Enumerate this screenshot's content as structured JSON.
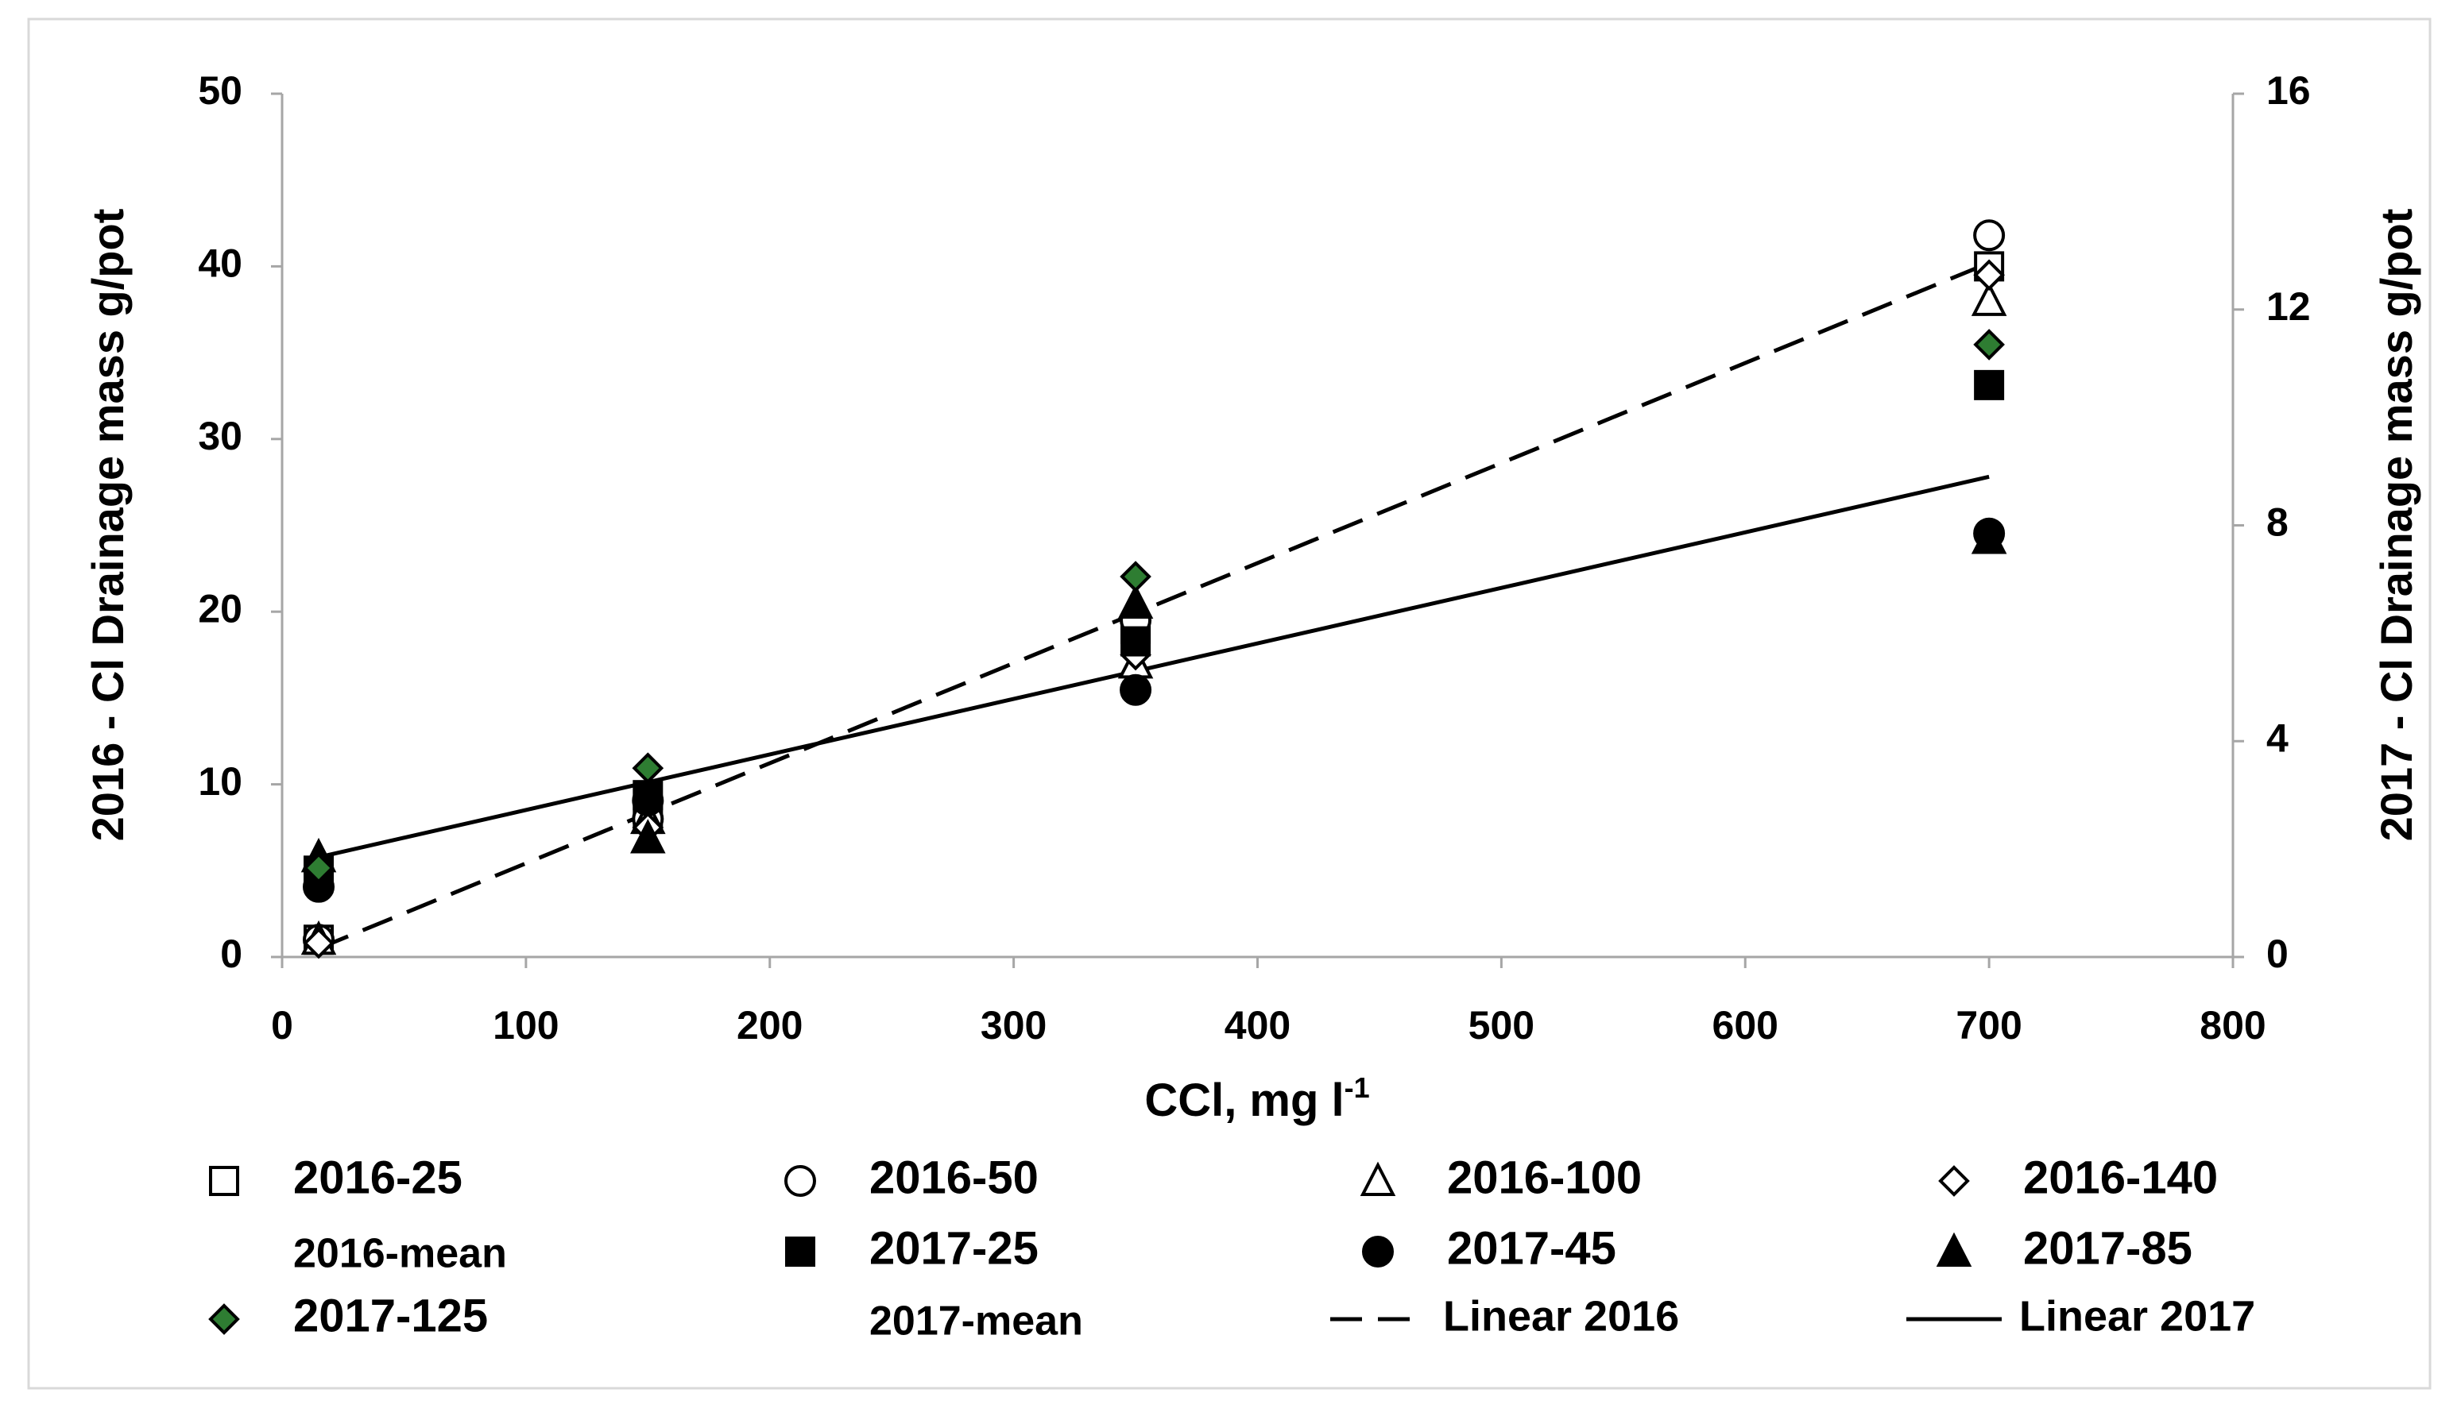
{
  "chart_data": {
    "type": "scatter",
    "y_label": "2016 - Cl Drainage mass g/pot",
    "y2_label": "2017 - Cl Drainage mass g/pot",
    "x_label": {
      "text": "CCl, mg l",
      "sup": "-1"
    },
    "xlim": [
      0,
      800
    ],
    "xticks": [
      0,
      100,
      200,
      300,
      400,
      500,
      600,
      700,
      800
    ],
    "ylim": [
      0,
      50
    ],
    "yticks": [
      0,
      10,
      20,
      30,
      40,
      50
    ],
    "y2lim": [
      0,
      16
    ],
    "y2ticks": [
      0,
      4,
      8,
      12,
      16
    ],
    "x": [
      15,
      150,
      350,
      700
    ],
    "series": [
      {
        "name": "2016-25",
        "marker": "square",
        "color": "#ffffff",
        "edgecolor": "#000000",
        "values": [
          1,
          8,
          19,
          40
        ]
      },
      {
        "name": "2016-50",
        "marker": "circle",
        "color": "#ffffff",
        "edgecolor": "#000000",
        "values": [
          1,
          8,
          19.5,
          41.8
        ]
      },
      {
        "name": "2016-100",
        "marker": "triangle",
        "color": "#ffffff",
        "edgecolor": "#000000",
        "values": [
          1,
          8,
          17,
          38
        ]
      },
      {
        "name": "2016-140",
        "marker": "diamond",
        "color": "#ffffff",
        "edgecolor": "#000000",
        "values": [
          0.8,
          7.5,
          17.5,
          39.5
        ]
      },
      {
        "name": "2016-mean",
        "marker": "none"
      },
      {
        "name": "2017-25",
        "marker": "square",
        "color": "#000000",
        "edgecolor": "#000000",
        "axis": "y2",
        "values": [
          1.6,
          3.0,
          5.85,
          10.6
        ]
      },
      {
        "name": "2017-45",
        "marker": "circle",
        "color": "#000000",
        "edgecolor": "#000000",
        "axis": "y2",
        "values": [
          1.3,
          2.9,
          4.95,
          7.85
        ]
      },
      {
        "name": "2017-85",
        "marker": "triangle",
        "color": "#000000",
        "edgecolor": "#000000",
        "axis": "y2",
        "values": [
          1.85,
          2.2,
          6.55,
          7.75
        ]
      },
      {
        "name": "2017-125",
        "marker": "diamond",
        "color": "#2e7d32",
        "edgecolor": "#000000",
        "axis": "y2",
        "values": [
          1.65,
          3.5,
          7.05,
          11.35
        ]
      },
      {
        "name": "2017-mean",
        "marker": "none"
      },
      {
        "name": "Linear 2016",
        "marker": "dashed-line",
        "color": "#000000",
        "x": [
          15,
          700
        ],
        "values": [
          0.5,
          40.2
        ]
      },
      {
        "name": "Linear 2017",
        "marker": "solid-line",
        "color": "#000000",
        "axis": "y2",
        "x": [
          15,
          700
        ],
        "values": [
          1.85,
          8.9
        ]
      }
    ]
  }
}
